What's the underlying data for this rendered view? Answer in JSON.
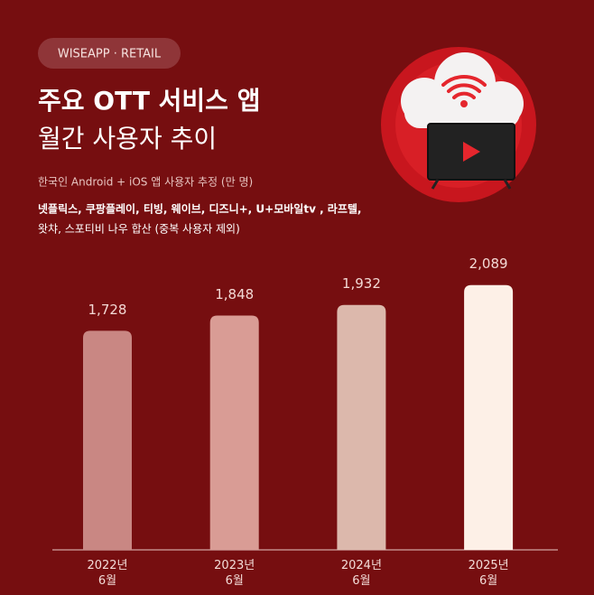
{
  "chart_data": {
    "type": "bar",
    "badge": "WISEAPP · RETAIL",
    "title": [
      "주요 OTT 서비스 앱",
      "월간 사용자 추이"
    ],
    "subtitle": "한국인 Android + iOS 앱 사용자 추정 (만 명)",
    "note": [
      "넷플릭스, 쿠팡플레이, 티빙, 웨이브, 디즈니+, U+모바일tv , 라프텔,",
      "왓챠, 스포티비 나우 합산 (중복 사용자 제외)"
    ],
    "categories": [
      "2022년\n6월",
      "2023년\n6월",
      "2024년\n6월",
      "2025년\n6월"
    ],
    "values": [
      1728,
      1848,
      1932,
      2089
    ],
    "value_labels": [
      "1,728",
      "1,848",
      "1,932",
      "2,089"
    ],
    "colors": [
      "#c98783",
      "#d99c95",
      "#dcb8ac",
      "#fdf0e7"
    ],
    "ylim": [
      0,
      2500
    ]
  }
}
